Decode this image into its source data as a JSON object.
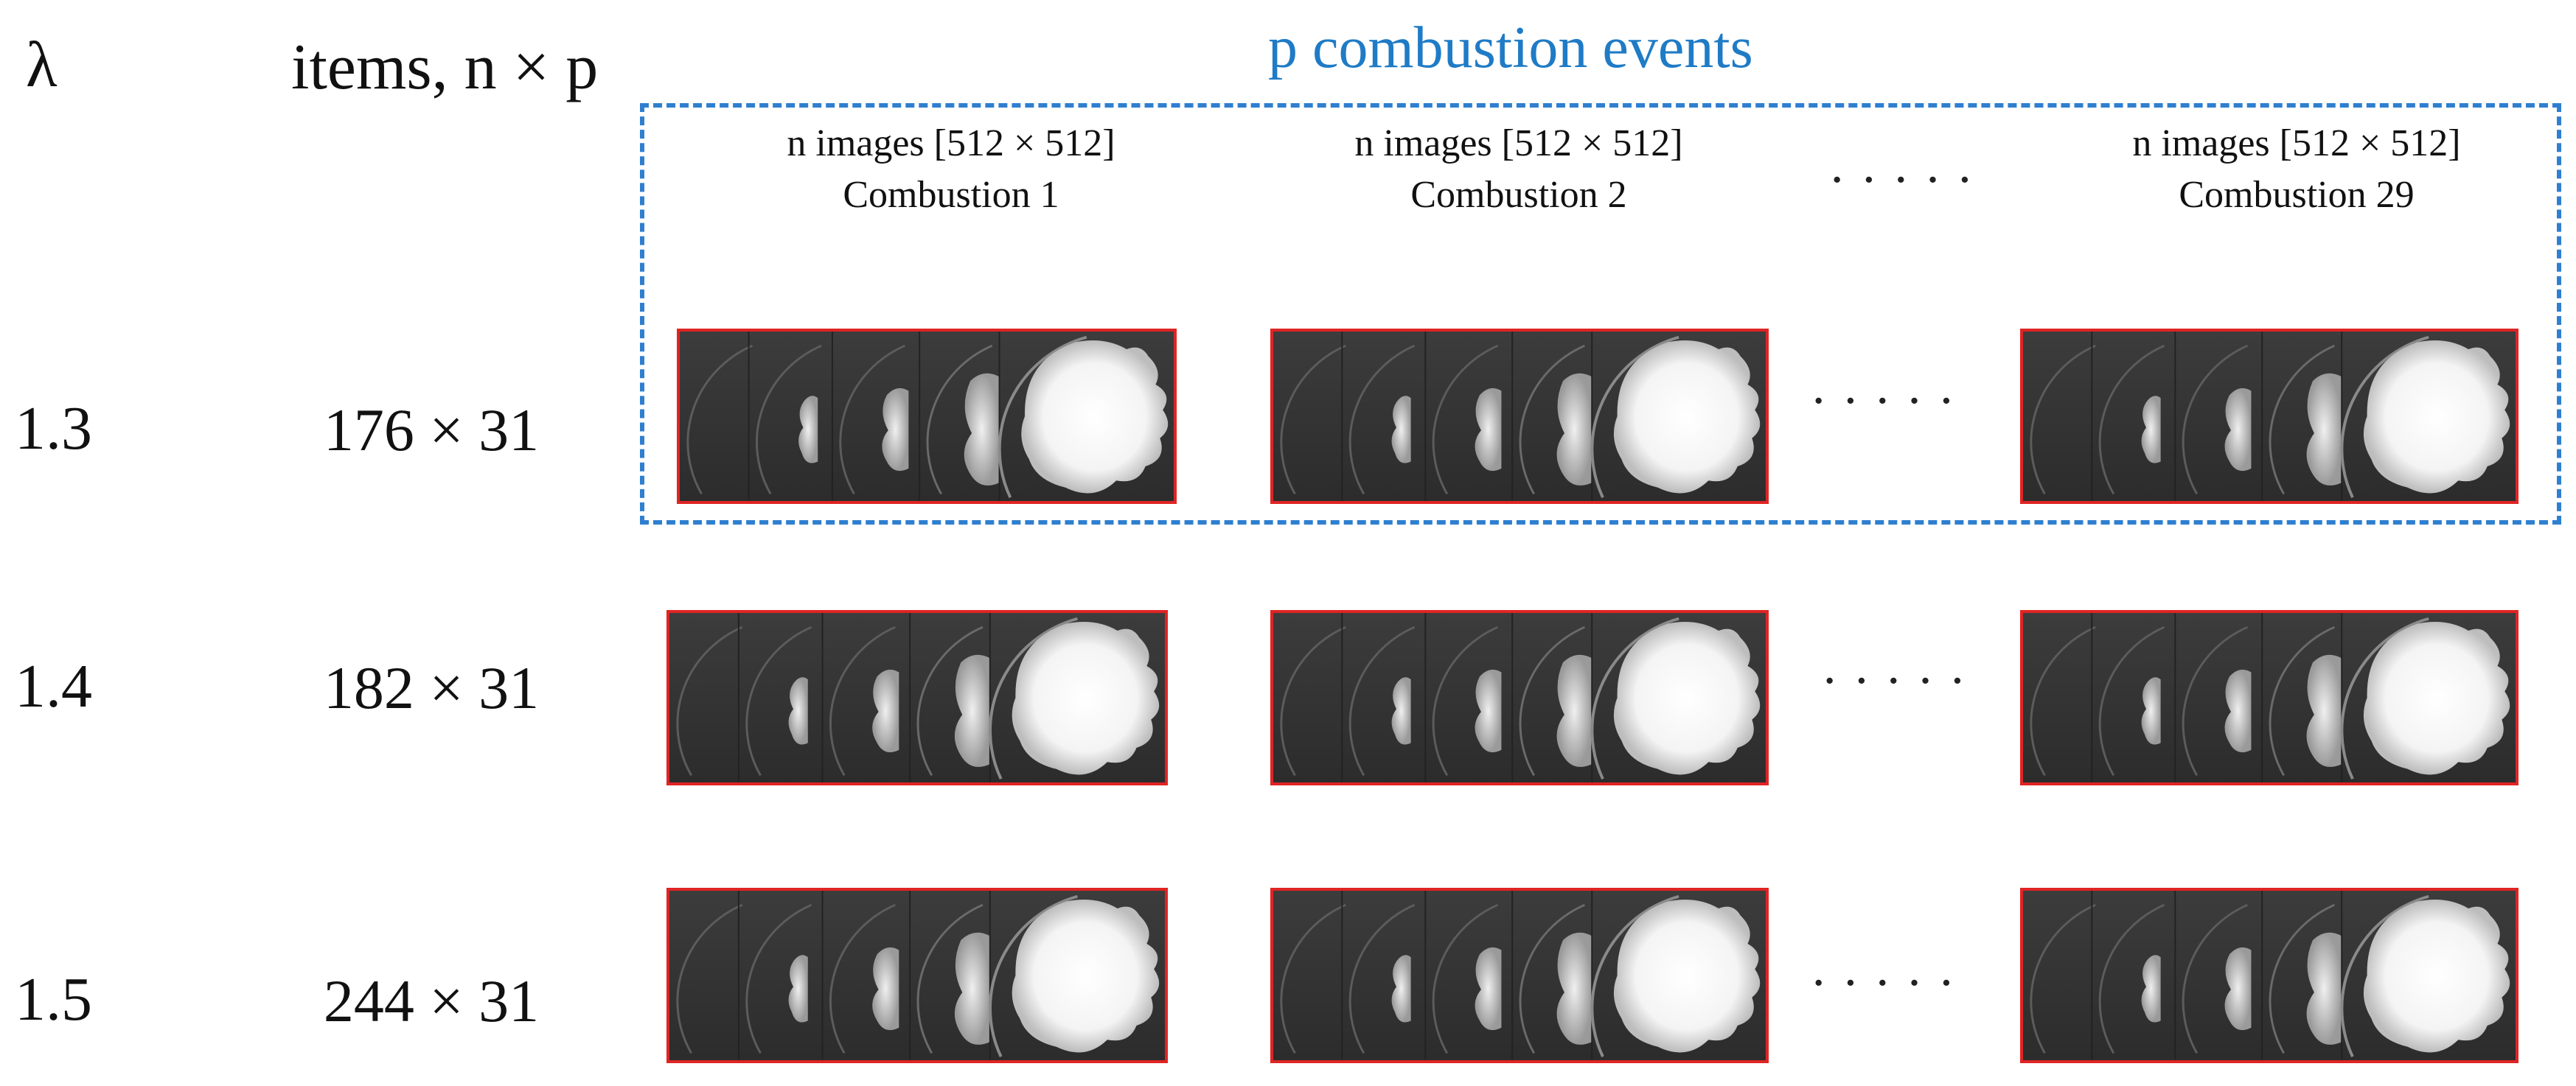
{
  "header": {
    "lambda_label": "λ",
    "items_label": "items, n × p",
    "title": "p combustion events"
  },
  "columns": [
    {
      "line1": "n images [512 × 512]",
      "line2": "Combustion 1"
    },
    {
      "line1": "n images [512 × 512]",
      "line2": "Combustion 2"
    },
    {
      "line1": "n images [512 × 512]",
      "line2": "Combustion 29"
    }
  ],
  "ellipsis": "·····",
  "rows": [
    {
      "lambda": "1.3",
      "items": "176 × 31"
    },
    {
      "lambda": "1.4",
      "items": "182 × 31"
    },
    {
      "lambda": "1.5",
      "items": "244 × 31"
    }
  ],
  "colors": {
    "frame_border": "#e02424",
    "dashed_box": "#2f7fd0",
    "title": "#1f7bc6"
  },
  "icons": {
    "frame_strip": "combustion-image-strip"
  }
}
